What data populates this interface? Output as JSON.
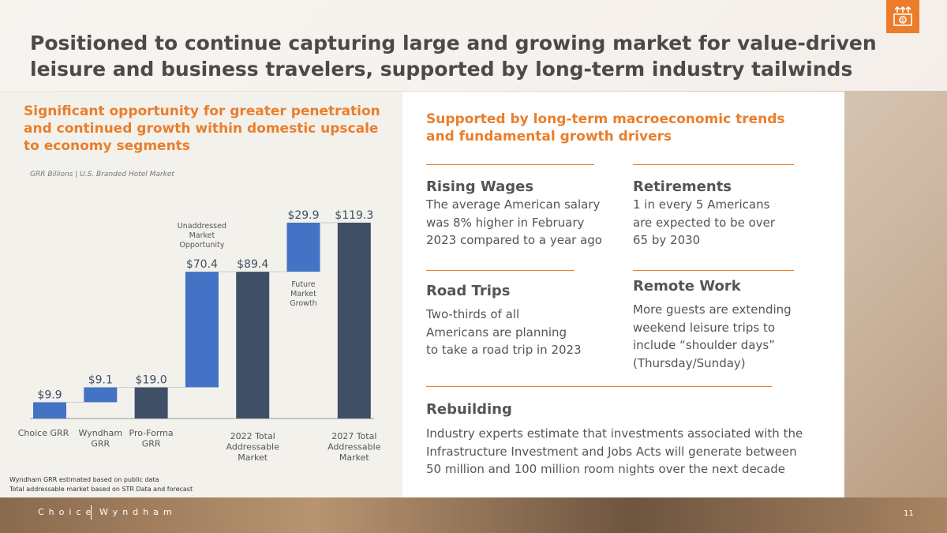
{
  "title": "Positioned to continue capturing large and growing market for value-driven leisure and business travelers, supported by long-term industry tailwinds",
  "logo_icon": "money-growth-icon",
  "left": {
    "heading": "Significant opportunity for greater penetration and continued growth within domestic upscale to economy segments",
    "subtitle": "GRR Billions | U.S. Branded Hotel Market",
    "footnotes": [
      "Wyndham GRR estimated based on public data",
      "Total addressable market based  on STR Data and forecast"
    ]
  },
  "chart_data": {
    "type": "bar",
    "subtype": "waterfall",
    "title": "GRR Billions | U.S. Branded Hotel Market",
    "categories": [
      "Choice GRR",
      "Wyndham GRR",
      "Pro-Forma GRR",
      "Unaddressed Market Opportunity",
      "2022 Total Addressable Market",
      "Future Market Growth",
      "2027 Total Addressable Market"
    ],
    "category_label_lines": [
      [
        "Choice GRR"
      ],
      [
        "Wyndham",
        "GRR"
      ],
      [
        "Pro-Forma",
        "GRR"
      ],
      [],
      [
        "2022 Total",
        "Addressable",
        "Market"
      ],
      [],
      [
        "2027 Total",
        "Addressable",
        "Market"
      ]
    ],
    "annotations": [
      {
        "index": 3,
        "lines": [
          "Unaddressed",
          "Market",
          "Opportunity"
        ]
      },
      {
        "index": 5,
        "lines": [
          "Future",
          "Market",
          "Growth"
        ]
      }
    ],
    "values": [
      9.9,
      9.1,
      19.0,
      70.4,
      89.4,
      29.9,
      119.3
    ],
    "data_labels": [
      "$9.9",
      "$9.1",
      "$19.0",
      "$70.4",
      "$89.4",
      "$29.9",
      "$119.3"
    ],
    "kind": [
      "delta",
      "delta",
      "total",
      "delta",
      "total",
      "delta",
      "total"
    ],
    "ylim": [
      0,
      119.3
    ],
    "colors": {
      "delta": "#4472c4",
      "total": "#3f4f66"
    },
    "grid": false
  },
  "right": {
    "heading": "Supported by long-term macroeconomic trends and fundamental growth drivers",
    "items": [
      {
        "title": "Rising Wages",
        "text": [
          "The average American salary",
          "was 8% higher in February",
          "2023 compared to a year ago"
        ]
      },
      {
        "title": "Retirements",
        "text": [
          "1 in every 5 Americans",
          "are expected to be over",
          "65 by 2030"
        ]
      },
      {
        "title": "Road Trips",
        "text": [
          "Two-thirds of all",
          "Americans are planning",
          "to take a road trip in 2023"
        ]
      },
      {
        "title": "Remote Work",
        "text": [
          "More guests are extending",
          "weekend leisure trips to",
          "include “shoulder days”",
          "(Thursday/Sunday)"
        ]
      },
      {
        "title": "Rebuilding",
        "text": [
          "Industry experts estimate that investments associated with the",
          "Infrastructure Investment and Jobs Acts will generate between",
          "50 million and 100 million room nights over the next decade"
        ]
      }
    ]
  },
  "footer": {
    "brand_left": "Choice",
    "brand_right": "Wyndham",
    "page": "11"
  }
}
